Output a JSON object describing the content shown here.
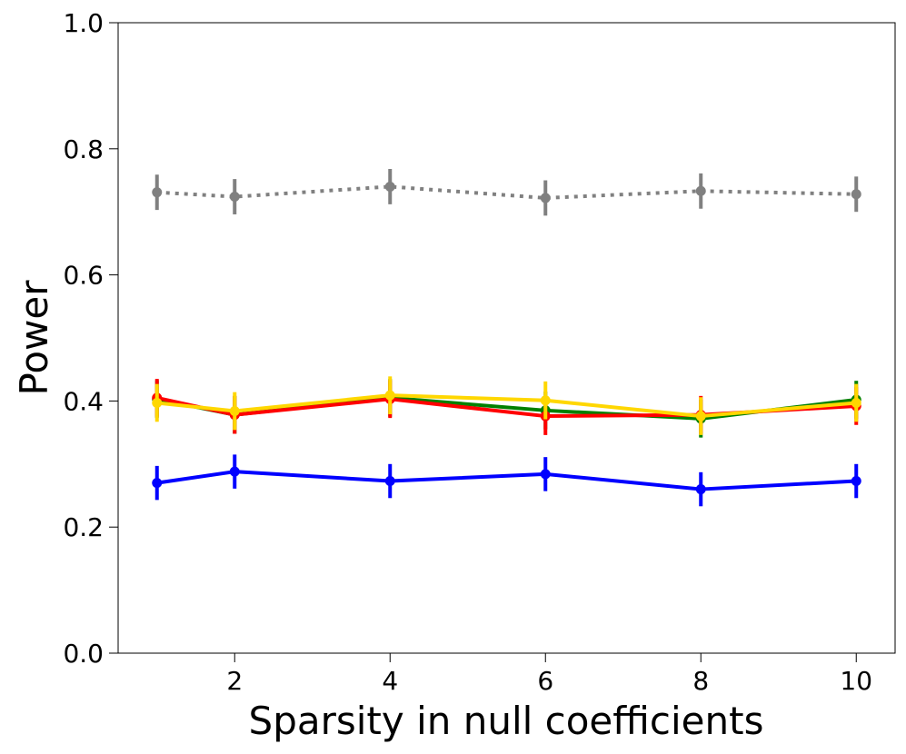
{
  "chart_data": {
    "type": "line",
    "title": "",
    "xlabel": "Sparsity in null coefficients",
    "ylabel": "Power",
    "xlim": [
      0.5,
      10.5
    ],
    "ylim": [
      0.0,
      1.0
    ],
    "grid": false,
    "xticks": [
      2,
      4,
      6,
      8,
      10
    ],
    "xtick_labels": [
      "2",
      "4",
      "6",
      "8",
      "10"
    ],
    "yticks": [
      0.0,
      0.2,
      0.4,
      0.6,
      0.8,
      1.0
    ],
    "ytick_labels": [
      "0.0",
      "0.2",
      "0.4",
      "0.6",
      "0.8",
      "1.0"
    ],
    "x": [
      1,
      2,
      4,
      6,
      8,
      10
    ],
    "series": [
      {
        "name": "gray",
        "color": "#808080",
        "style": "dotted",
        "values": [
          0.731,
          0.724,
          0.74,
          0.722,
          0.733,
          0.728
        ],
        "err": [
          0.028,
          0.028,
          0.028,
          0.028,
          0.028,
          0.028
        ]
      },
      {
        "name": "green",
        "color": "#008000",
        "style": "solid",
        "values": [
          0.403,
          0.378,
          0.405,
          0.385,
          0.372,
          0.402
        ],
        "err": [
          0.03,
          0.03,
          0.03,
          0.03,
          0.03,
          0.03
        ]
      },
      {
        "name": "red",
        "color": "#ff0000",
        "style": "solid",
        "values": [
          0.405,
          0.378,
          0.403,
          0.376,
          0.378,
          0.392
        ],
        "err": [
          0.03,
          0.03,
          0.03,
          0.03,
          0.03,
          0.03
        ]
      },
      {
        "name": "yellow",
        "color": "#ffd700",
        "style": "solid",
        "values": [
          0.397,
          0.384,
          0.409,
          0.401,
          0.376,
          0.397
        ],
        "err": [
          0.03,
          0.03,
          0.03,
          0.03,
          0.03,
          0.03
        ]
      },
      {
        "name": "blue",
        "color": "#0000ff",
        "style": "solid",
        "values": [
          0.27,
          0.288,
          0.273,
          0.284,
          0.26,
          0.273
        ],
        "err": [
          0.027,
          0.027,
          0.027,
          0.027,
          0.027,
          0.027
        ]
      }
    ]
  }
}
